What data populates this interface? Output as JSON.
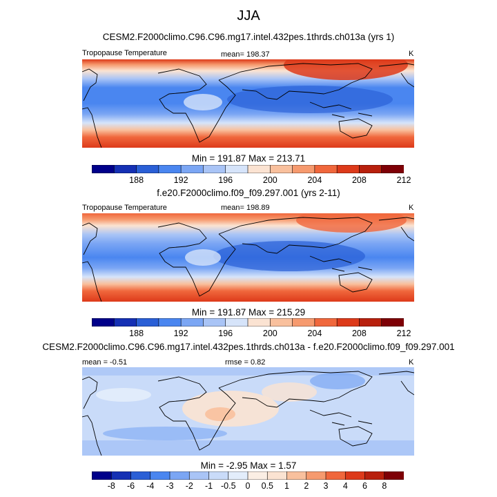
{
  "season": "JJA",
  "panels": [
    {
      "title": "CESM2.F2000climo.C96.C96.mg17.intel.432pes.1thrds.ch013a (yrs 1)",
      "left_label": "Tropopause Temperature",
      "center_label": "mean= 198.37",
      "right_label": "K",
      "minmax": "Min = 191.87 Max = 213.71"
    },
    {
      "title": "f.e20.F2000climo.f09_f09.297.001 (yrs 2-11)",
      "left_label": "Tropopause Temperature",
      "center_label": "mean= 198.89",
      "right_label": "K",
      "minmax": "Min = 191.87 Max = 215.29"
    },
    {
      "title": "CESM2.F2000climo.C96.C96.mg17.intel.432pes.1thrds.ch013a - f.e20.F2000climo.f09_f09.297.001",
      "left_label": "mean = -0.51",
      "center_label": "rmse = 0.82",
      "right_label": "K",
      "minmax": "Min = -2.95 Max = 1.57"
    }
  ],
  "chart_data": [
    {
      "type": "heatmap",
      "title": "CESM2.F2000climo.C96.C96.mg17.intel.432pes.1thrds.ch013a (yrs 1)",
      "variable": "Tropopause Temperature",
      "units": "K",
      "mean": 198.37,
      "min": 191.87,
      "max": 213.71,
      "colorbar_ticks": [
        "188",
        "192",
        "196",
        "200",
        "204",
        "208",
        "212"
      ]
    },
    {
      "type": "heatmap",
      "title": "f.e20.F2000climo.f09_f09.297.001 (yrs 2-11)",
      "variable": "Tropopause Temperature",
      "units": "K",
      "mean": 198.89,
      "min": 191.87,
      "max": 215.29,
      "colorbar_ticks": [
        "188",
        "192",
        "196",
        "200",
        "204",
        "208",
        "212"
      ]
    },
    {
      "type": "heatmap",
      "title": "CESM2.F2000climo.C96.C96.mg17.intel.432pes.1thrds.ch013a - f.e20.F2000climo.f09_f09.297.001",
      "units": "K",
      "mean": -0.51,
      "rmse": 0.82,
      "min": -2.95,
      "max": 1.57,
      "colorbar_ticks": [
        "-8",
        "-6",
        "-4",
        "-3",
        "-2",
        "-1",
        "-0.5",
        "0",
        "0.5",
        "1",
        "2",
        "3",
        "4",
        "6",
        "8"
      ]
    }
  ],
  "colors": {
    "palette": [
      "#00008a",
      "#1530b4",
      "#2a5fd6",
      "#4a86f0",
      "#7ba6f4",
      "#a9c4f6",
      "#d6e4fa",
      "#fbe3d2",
      "#f9c09d",
      "#f69a6e",
      "#f0673c",
      "#dd3a1a",
      "#b8200d",
      "#7e0006"
    ],
    "diff_palette": [
      "#00008a",
      "#1530b4",
      "#2a5fd6",
      "#4a86f0",
      "#7ba6f4",
      "#a9c4f6",
      "#c9dbf9",
      "#e3edfb",
      "#fbeee4",
      "#fbe3d2",
      "#f9c09d",
      "#f69a6e",
      "#f0673c",
      "#dd3a1a",
      "#b8200d",
      "#7e0006"
    ],
    "land_outline": "#000000"
  }
}
